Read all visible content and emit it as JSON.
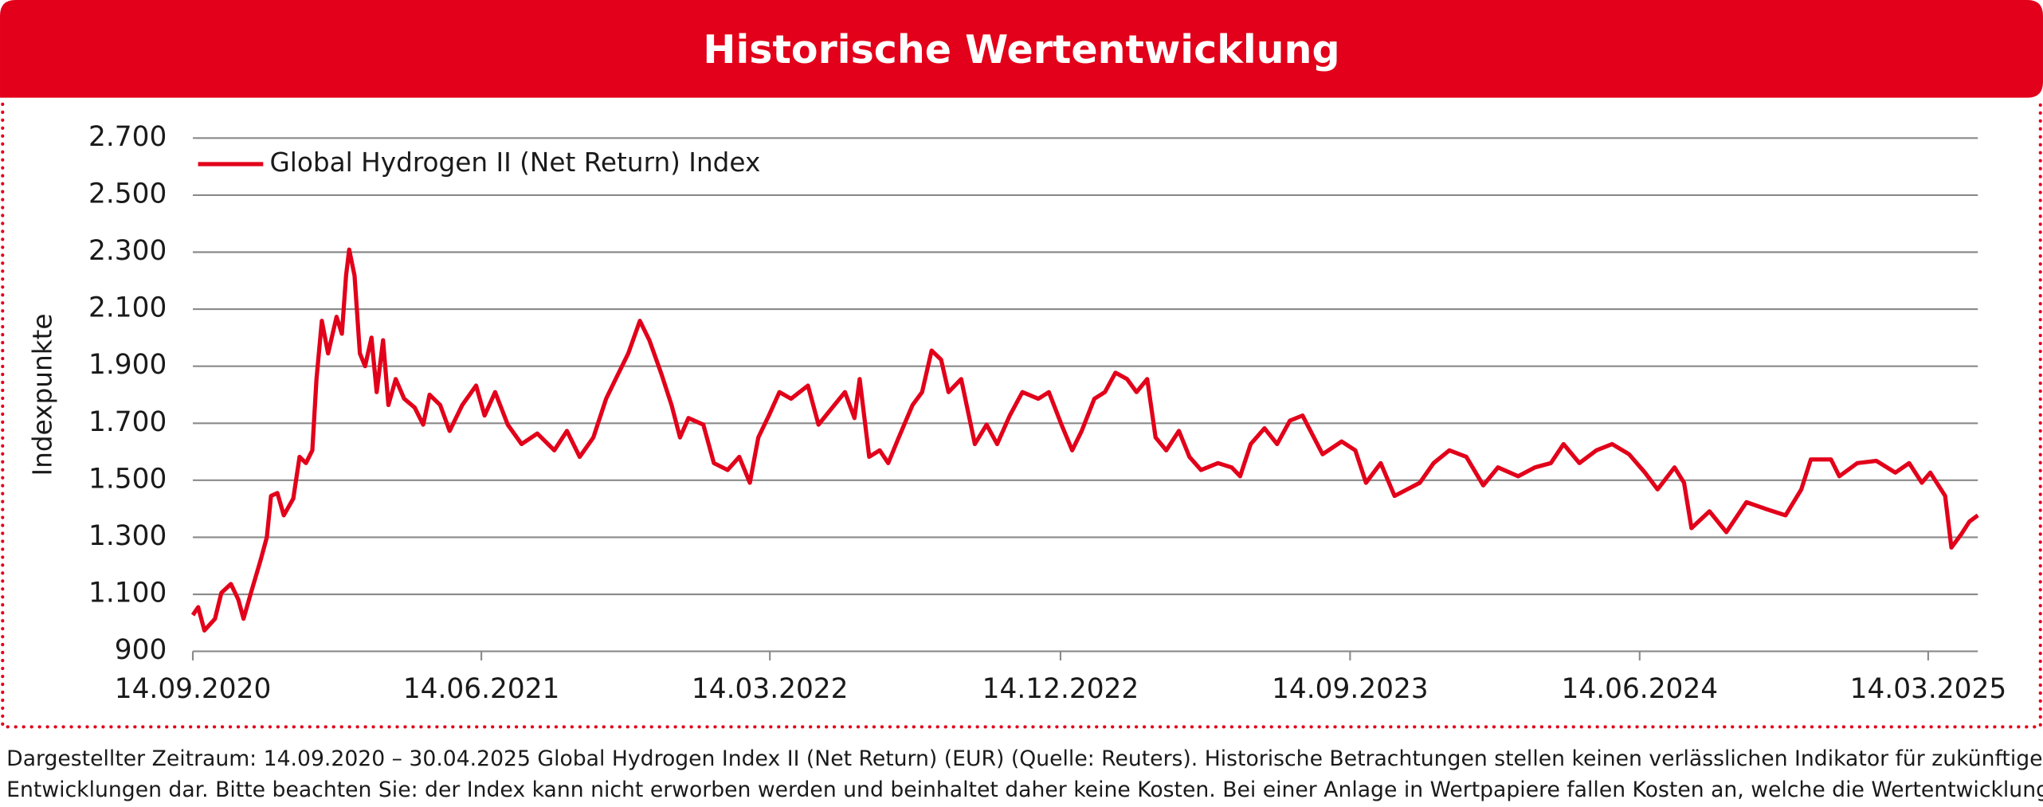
{
  "chart_data": {
    "type": "line",
    "title": "Historische Wertentwicklung",
    "ylabel": "Indexpunkte",
    "legend": "upper left",
    "grid": true,
    "xlim": [
      "2020-09-14",
      "2025-04-30"
    ],
    "xticks": [
      {
        "value": "2020-09-14",
        "label": "14.09.2020"
      },
      {
        "value": "2021-06-14",
        "label": "14.06.2021"
      },
      {
        "value": "2022-03-14",
        "label": "14.03.2022"
      },
      {
        "value": "2022-12-14",
        "label": "14.12.2022"
      },
      {
        "value": "2023-09-14",
        "label": "14.09.2023"
      },
      {
        "value": "2024-06-14",
        "label": "14.06.2024"
      },
      {
        "value": "2025-03-14",
        "label": "14.03.2025"
      }
    ],
    "ylim": [
      900,
      2700
    ],
    "yticks": [
      900,
      {
        "value": 1100,
        "label": "1.100"
      },
      {
        "value": 1300,
        "label": "1.300"
      },
      {
        "value": 1500,
        "label": "1.500"
      },
      {
        "value": 1700,
        "label": "1.700"
      },
      {
        "value": 1900,
        "label": "1.900"
      },
      {
        "value": 2100,
        "label": "2.100"
      },
      {
        "value": 2300,
        "label": "2.300"
      },
      {
        "value": 2500,
        "label": "2.500"
      },
      {
        "value": 2700,
        "label": "2.700"
      }
    ],
    "x": [
      "2020-09-14",
      "2020-09-19",
      "2020-09-25",
      "2020-10-05",
      "2020-10-11",
      "2020-10-20",
      "2020-10-27",
      "2020-11-01",
      "2020-11-08",
      "2020-11-17",
      "2020-11-23",
      "2020-11-27",
      "2020-12-03",
      "2020-12-09",
      "2020-12-18",
      "2020-12-24",
      "2020-12-30",
      "2021-01-05",
      "2021-01-09",
      "2021-01-14",
      "2021-01-20",
      "2021-01-28",
      "2021-02-02",
      "2021-02-06",
      "2021-02-09",
      "2021-02-14",
      "2021-02-19",
      "2021-02-24",
      "2021-03-02",
      "2021-03-07",
      "2021-03-13",
      "2021-03-18",
      "2021-03-25",
      "2021-04-02",
      "2021-04-12",
      "2021-04-20",
      "2021-04-26",
      "2021-05-06",
      "2021-05-15",
      "2021-05-27",
      "2021-06-09",
      "2021-06-17",
      "2021-06-27",
      "2021-07-09",
      "2021-07-22",
      "2021-08-06",
      "2021-08-22",
      "2021-09-03",
      "2021-09-15",
      "2021-09-28",
      "2021-10-10",
      "2021-10-19",
      "2021-10-31",
      "2021-11-11",
      "2021-11-20",
      "2021-12-01",
      "2021-12-11",
      "2021-12-19",
      "2021-12-27",
      "2022-01-10",
      "2022-01-20",
      "2022-02-02",
      "2022-02-13",
      "2022-02-23",
      "2022-03-03",
      "2022-03-13",
      "2022-03-23",
      "2022-04-03",
      "2022-04-19",
      "2022-04-29",
      "2022-05-14",
      "2022-05-24",
      "2022-06-02",
      "2022-06-07",
      "2022-06-16",
      "2022-06-26",
      "2022-07-04",
      "2022-07-14",
      "2022-07-27",
      "2022-08-05",
      "2022-08-14",
      "2022-08-23",
      "2022-08-30",
      "2022-09-11",
      "2022-09-24",
      "2022-10-05",
      "2022-10-15",
      "2022-10-27",
      "2022-11-08",
      "2022-11-23",
      "2022-12-03",
      "2022-12-15",
      "2022-12-25",
      "2023-01-03",
      "2023-01-15",
      "2023-01-25",
      "2023-02-04",
      "2023-02-15",
      "2023-02-24",
      "2023-03-06",
      "2023-03-14",
      "2023-03-24",
      "2023-04-05",
      "2023-04-15",
      "2023-04-26",
      "2023-05-12",
      "2023-05-25",
      "2023-06-02",
      "2023-06-12",
      "2023-06-25",
      "2023-07-07",
      "2023-07-19",
      "2023-07-31",
      "2023-08-19",
      "2023-09-06",
      "2023-09-19",
      "2023-09-29",
      "2023-10-13",
      "2023-10-26",
      "2023-11-07",
      "2023-11-19",
      "2023-12-02",
      "2023-12-17",
      "2024-01-02",
      "2024-01-18",
      "2024-02-01",
      "2024-02-20",
      "2024-03-07",
      "2024-03-22",
      "2024-04-03",
      "2024-04-18",
      "2024-05-04",
      "2024-05-19",
      "2024-06-04",
      "2024-06-19",
      "2024-07-01",
      "2024-07-17",
      "2024-07-26",
      "2024-08-02",
      "2024-08-19",
      "2024-09-04",
      "2024-09-23",
      "2024-10-11",
      "2024-10-30",
      "2024-11-14",
      "2024-11-23",
      "2024-12-12",
      "2024-12-20",
      "2025-01-06",
      "2025-01-24",
      "2025-02-11",
      "2025-02-24",
      "2025-03-08",
      "2025-03-16",
      "2025-03-30",
      "2025-04-05",
      "2025-04-14",
      "2025-04-22",
      "2025-04-30"
    ],
    "series": [
      {
        "name": "Global Hydrogen II (Net Return) Index",
        "color": "#e2001a",
        "values": [
          1027,
          1055,
          973,
          1014,
          1105,
          1136,
          1082,
          1014,
          1105,
          1218,
          1300,
          1445,
          1455,
          1377,
          1436,
          1582,
          1560,
          1605,
          1855,
          2059,
          1945,
          2073,
          2014,
          2218,
          2309,
          2218,
          1945,
          1900,
          2000,
          1809,
          1991,
          1764,
          1855,
          1786,
          1755,
          1695,
          1800,
          1764,
          1673,
          1764,
          1832,
          1727,
          1809,
          1695,
          1627,
          1664,
          1605,
          1673,
          1582,
          1650,
          1786,
          1855,
          1945,
          2059,
          1991,
          1877,
          1764,
          1650,
          1718,
          1695,
          1560,
          1536,
          1582,
          1491,
          1650,
          1727,
          1809,
          1786,
          1832,
          1695,
          1764,
          1809,
          1718,
          1855,
          1582,
          1605,
          1560,
          1650,
          1764,
          1809,
          1955,
          1923,
          1809,
          1855,
          1627,
          1695,
          1627,
          1727,
          1809,
          1786,
          1809,
          1695,
          1605,
          1673,
          1786,
          1809,
          1877,
          1855,
          1809,
          1855,
          1650,
          1605,
          1673,
          1582,
          1536,
          1560,
          1545,
          1514,
          1627,
          1682,
          1627,
          1709,
          1727,
          1591,
          1636,
          1605,
          1491,
          1560,
          1445,
          1468,
          1491,
          1560,
          1605,
          1582,
          1482,
          1545,
          1514,
          1545,
          1560,
          1627,
          1560,
          1605,
          1627,
          1591,
          1527,
          1468,
          1545,
          1491,
          1332,
          1391,
          1318,
          1423,
          1400,
          1377,
          1468,
          1573,
          1573,
          1514,
          1560,
          1568,
          1527,
          1560,
          1491,
          1527,
          1445,
          1264,
          1309,
          1355,
          1377
        ]
      }
    ]
  },
  "footnote": [
    "Dargestellter Zeitraum: 14.09.2020 – 30.04.2025 Global Hydrogen Index II (Net Return) (EUR) (Quelle: Reuters). Historische Betrachtungen stellen keinen verlässlichen Indikator für zukünftige",
    "Entwicklungen dar. Bitte beachten Sie: der Index kann nicht erworben werden und beinhaltet daher keine Kosten. Bei einer Anlage in Wertpapiere fallen Kosten an, welche die Wertentwicklung reduzieren."
  ]
}
